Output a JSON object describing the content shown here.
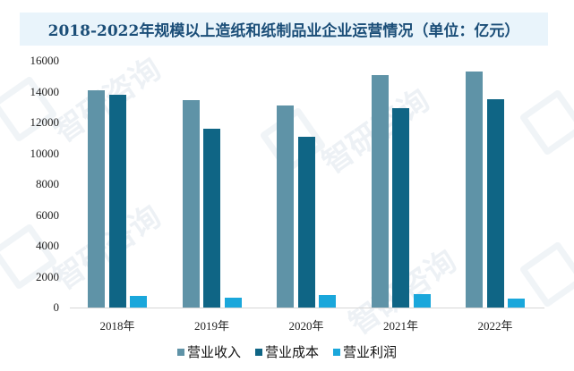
{
  "title": "2018-2022年规模以上造纸和纸制品业企业运营情况（单位：亿元）",
  "watermark": "智研咨询",
  "chart_data": {
    "type": "bar",
    "title": "2018-2022年规模以上造纸和纸制品业企业运营情况（单位：亿元）",
    "xlabel": "",
    "ylabel": "",
    "ylim": [
      0,
      16000
    ],
    "yticks": [
      0,
      2000,
      4000,
      6000,
      8000,
      10000,
      12000,
      14000,
      16000
    ],
    "grid": false,
    "legend_position": "bottom",
    "categories": [
      "2018年",
      "2019年",
      "2020年",
      "2021年",
      "2022年"
    ],
    "series": [
      {
        "name": "营业收入",
        "color": "#5f93a7",
        "values": [
          14070,
          13430,
          13090,
          15050,
          15290
        ]
      },
      {
        "name": "营业成本",
        "color": "#0f6585",
        "values": [
          13780,
          11580,
          11060,
          12910,
          13490
        ]
      },
      {
        "name": "营业利润",
        "color": "#1aa7db",
        "values": [
          750,
          640,
          810,
          870,
          580
        ]
      }
    ]
  }
}
